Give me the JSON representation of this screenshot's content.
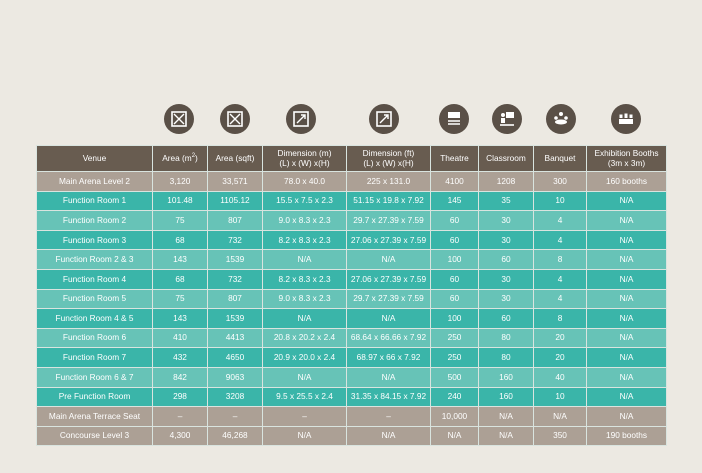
{
  "header": {
    "venue": "Venue",
    "area_m": "Area (m",
    "area_m_sup": "2",
    "area_m_close": ")",
    "area_sqft": "Area (sqft)",
    "dim_m_line1": "Dimension (m)",
    "dim_m_line2": "(L) x (W) x(H)",
    "dim_ft_line1": "Dimension (ft)",
    "dim_ft_line2": "(L) x (W) x(H)",
    "theatre": "Theatre",
    "classroom": "Classroom",
    "banquet": "Banquet",
    "booths_line1": "Exhibition Booths",
    "booths_line2": "(3m x 3m)"
  },
  "icons": [
    "area-m-icon",
    "area-sqft-icon",
    "dimension-m-icon",
    "dimension-ft-icon",
    "theatre-icon",
    "classroom-icon",
    "banquet-icon",
    "exhibition-booths-icon"
  ],
  "colors": {
    "header": "#685c50",
    "tan_row": "#aca095",
    "teal_row": "#3ab5a9",
    "light_teal_row": "#67c3b7",
    "icon_circle": "#5a5047",
    "background": "#ece9e2"
  },
  "rows": [
    {
      "venue": "Main Arena Level 2",
      "area_m": "3,120",
      "area_sqft": "33,571",
      "dim_m": "78.0 x 40.0",
      "dim_ft": "225 x 131.0",
      "theatre": "4100",
      "classroom": "1208",
      "banquet": "300",
      "booths": "160 booths"
    },
    {
      "venue": "Function Room 1",
      "area_m": "101.48",
      "area_sqft": "1105.12",
      "dim_m": "15.5 x 7.5 x 2.3",
      "dim_ft": "51.15 x 19.8 x 7.92",
      "theatre": "145",
      "classroom": "35",
      "banquet": "10",
      "booths": "N/A"
    },
    {
      "venue": "Function Room 2",
      "area_m": "75",
      "area_sqft": "807",
      "dim_m": "9.0 x 8.3 x 2.3",
      "dim_ft": "29.7 x 27.39 x 7.59",
      "theatre": "60",
      "classroom": "30",
      "banquet": "4",
      "booths": "N/A"
    },
    {
      "venue": "Function Room 3",
      "area_m": "68",
      "area_sqft": "732",
      "dim_m": "8.2 x 8.3 x 2.3",
      "dim_ft": "27.06 x 27.39 x 7.59",
      "theatre": "60",
      "classroom": "30",
      "banquet": "4",
      "booths": "N/A"
    },
    {
      "venue": "Function Room 2 & 3",
      "area_m": "143",
      "area_sqft": "1539",
      "dim_m": "N/A",
      "dim_ft": "N/A",
      "theatre": "100",
      "classroom": "60",
      "banquet": "8",
      "booths": "N/A"
    },
    {
      "venue": "Function Room 4",
      "area_m": "68",
      "area_sqft": "732",
      "dim_m": "8.2 x 8.3 x 2.3",
      "dim_ft": "27.06 x 27.39 x 7.59",
      "theatre": "60",
      "classroom": "30",
      "banquet": "4",
      "booths": "N/A"
    },
    {
      "venue": "Function Room 5",
      "area_m": "75",
      "area_sqft": "807",
      "dim_m": "9.0 x 8.3 x 2.3",
      "dim_ft": "29.7 x 27.39 x 7.59",
      "theatre": "60",
      "classroom": "30",
      "banquet": "4",
      "booths": "N/A"
    },
    {
      "venue": "Function Room 4 & 5",
      "area_m": "143",
      "area_sqft": "1539",
      "dim_m": "N/A",
      "dim_ft": "N/A",
      "theatre": "100",
      "classroom": "60",
      "banquet": "8",
      "booths": "N/A"
    },
    {
      "venue": "Function Room 6",
      "area_m": "410",
      "area_sqft": "4413",
      "dim_m": "20.8 x 20.2 x 2.4",
      "dim_ft": "68.64 x 66.66 x 7.92",
      "theatre": "250",
      "classroom": "80",
      "banquet": "20",
      "booths": "N/A"
    },
    {
      "venue": "Function Room 7",
      "area_m": "432",
      "area_sqft": "4650",
      "dim_m": "20.9 x 20.0 x 2.4",
      "dim_ft": "68.97 x 66 x 7.92",
      "theatre": "250",
      "classroom": "80",
      "banquet": "20",
      "booths": "N/A"
    },
    {
      "venue": "Function Room 6 & 7",
      "area_m": "842",
      "area_sqft": "9063",
      "dim_m": "N/A",
      "dim_ft": "N/A",
      "theatre": "500",
      "classroom": "160",
      "banquet": "40",
      "booths": "N/A"
    },
    {
      "venue": "Pre Function Room",
      "area_m": "298",
      "area_sqft": "3208",
      "dim_m": "9.5 x 25.5 x 2.4",
      "dim_ft": "31.35 x 84.15 x 7.92",
      "theatre": "240",
      "classroom": "160",
      "banquet": "10",
      "booths": "N/A"
    },
    {
      "venue": "Main Arena Terrace Seat",
      "area_m": "–",
      "area_sqft": "–",
      "dim_m": "–",
      "dim_ft": "–",
      "theatre": "10,000",
      "classroom": "N/A",
      "banquet": "N/A",
      "booths": "N/A"
    },
    {
      "venue": "Concourse Level 3",
      "area_m": "4,300",
      "area_sqft": "46,268",
      "dim_m": "N/A",
      "dim_ft": "N/A",
      "theatre": "N/A",
      "classroom": "N/A",
      "banquet": "350",
      "booths": "190 booths"
    }
  ]
}
